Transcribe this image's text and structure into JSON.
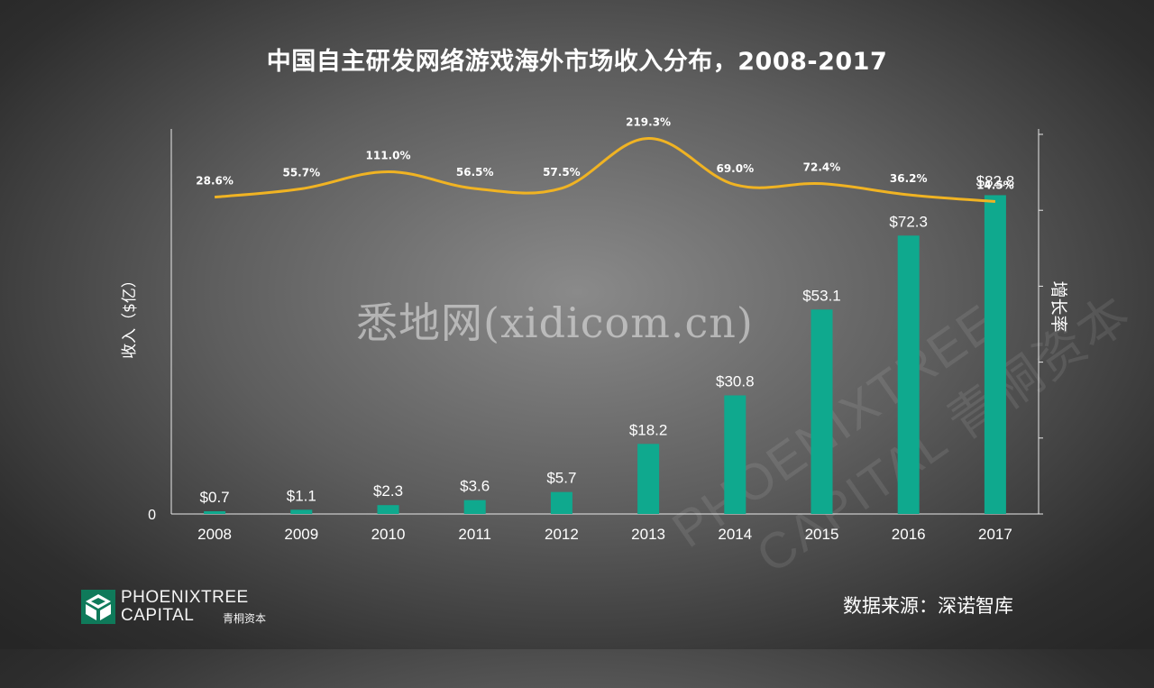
{
  "title": "中国自主研发网络游戏海外市场收入分布，2008-2017",
  "watermark": "悉地网(xidicom.cn)",
  "source": "数据来源：深诺智库",
  "logo": {
    "name_line1": "PHOENIXTREE",
    "name_line2": "CAPITAL",
    "name_cn": "青桐资本",
    "background_line1": "PHOENIXTREE",
    "background_line2": "CAPITAL 青桐资本"
  },
  "colors": {
    "bar": "#0fa98e",
    "line": "#f0b323",
    "axis": "#e8e8e8"
  },
  "chart_data": {
    "type": "bar+line",
    "title": "中国自主研发网络游戏海外市场收入分布，2008-2017",
    "categories": [
      "2008",
      "2009",
      "2010",
      "2011",
      "2012",
      "2013",
      "2014",
      "2015",
      "2016",
      "2017"
    ],
    "series": [
      {
        "name": "收入",
        "type": "bar",
        "axis": "left",
        "values": [
          0.7,
          1.1,
          2.3,
          3.6,
          5.7,
          18.2,
          30.8,
          53.1,
          72.3,
          82.8
        ],
        "labels": [
          "$0.7",
          "$1.1",
          "$2.3",
          "$3.6",
          "$5.7",
          "$18.2",
          "$30.8",
          "$53.1",
          "$72.3",
          "$82.8"
        ]
      },
      {
        "name": "增长率",
        "type": "line",
        "axis": "right",
        "values": [
          28.6,
          55.7,
          111.0,
          56.5,
          57.5,
          219.3,
          69.0,
          72.4,
          36.2,
          14.5
        ],
        "labels": [
          "28.6%",
          "55.7%",
          "111.0%",
          "56.5%",
          "57.5%",
          "219.3%",
          "69.0%",
          "72.4%",
          "36.2%",
          "14.5%"
        ]
      }
    ],
    "ylabel": "收入（$亿）",
    "y2label": "增长率",
    "ylim": [
      0,
      100
    ],
    "y2lim": [
      -1000,
      250
    ],
    "y_tick_labels": [
      "0"
    ],
    "grid": false
  }
}
